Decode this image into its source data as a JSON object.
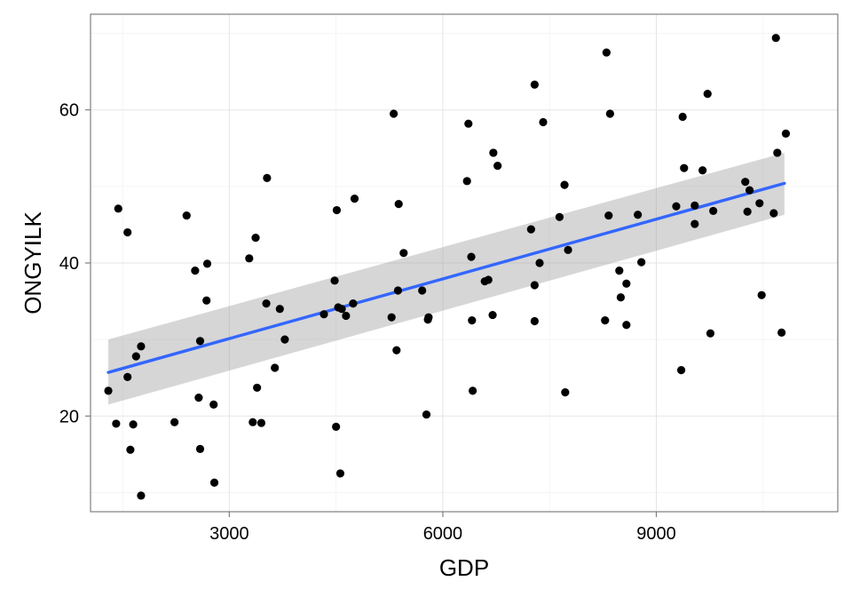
{
  "chart_data": {
    "type": "scatter",
    "title": "",
    "xlabel": "GDP",
    "ylabel": "ONGYILK",
    "xlim": [
      1050,
      11550
    ],
    "ylim": [
      7.5,
      72.5
    ],
    "x_ticks": [
      3000,
      6000,
      9000
    ],
    "y_ticks": [
      20,
      40,
      60
    ],
    "x_tick_labels": [
      "3000",
      "6000",
      "9000"
    ],
    "y_tick_labels": [
      "20",
      "40",
      "60"
    ],
    "grid": true,
    "point_color": "#000000",
    "trend_line": {
      "method": "linear",
      "color": "#3366FF",
      "x": [
        1300,
        10800
      ],
      "y": [
        25.7,
        50.4
      ],
      "ci_lower": [
        21.5,
        46.3
      ],
      "ci_upper": [
        30.0,
        54.4
      ],
      "ci_color": "#999999"
    },
    "points": [
      {
        "x": 1300,
        "y": 23.3
      },
      {
        "x": 1410,
        "y": 19.0
      },
      {
        "x": 1440,
        "y": 47.1
      },
      {
        "x": 1570,
        "y": 44.0
      },
      {
        "x": 1570,
        "y": 25.1
      },
      {
        "x": 1610,
        "y": 15.6
      },
      {
        "x": 1650,
        "y": 18.9
      },
      {
        "x": 1690,
        "y": 27.8
      },
      {
        "x": 1760,
        "y": 9.6
      },
      {
        "x": 1760,
        "y": 29.1
      },
      {
        "x": 2230,
        "y": 19.2
      },
      {
        "x": 2400,
        "y": 46.2
      },
      {
        "x": 2520,
        "y": 39.0
      },
      {
        "x": 2570,
        "y": 22.4
      },
      {
        "x": 2590,
        "y": 29.8
      },
      {
        "x": 2590,
        "y": 15.7
      },
      {
        "x": 2680,
        "y": 35.1
      },
      {
        "x": 2690,
        "y": 39.9
      },
      {
        "x": 2780,
        "y": 21.5
      },
      {
        "x": 2790,
        "y": 11.3
      },
      {
        "x": 3280,
        "y": 40.6
      },
      {
        "x": 3330,
        "y": 19.2
      },
      {
        "x": 3370,
        "y": 43.3
      },
      {
        "x": 3390,
        "y": 23.7
      },
      {
        "x": 3450,
        "y": 19.1
      },
      {
        "x": 3520,
        "y": 34.7
      },
      {
        "x": 3530,
        "y": 51.1
      },
      {
        "x": 3640,
        "y": 26.3
      },
      {
        "x": 3710,
        "y": 34.0
      },
      {
        "x": 3780,
        "y": 30.0
      },
      {
        "x": 4330,
        "y": 33.3
      },
      {
        "x": 4480,
        "y": 37.7
      },
      {
        "x": 4500,
        "y": 18.6
      },
      {
        "x": 4510,
        "y": 46.9
      },
      {
        "x": 4530,
        "y": 34.2
      },
      {
        "x": 4560,
        "y": 12.5
      },
      {
        "x": 4580,
        "y": 34.0
      },
      {
        "x": 4640,
        "y": 33.1
      },
      {
        "x": 4740,
        "y": 34.7
      },
      {
        "x": 4760,
        "y": 48.4
      },
      {
        "x": 5280,
        "y": 32.9
      },
      {
        "x": 5310,
        "y": 59.5
      },
      {
        "x": 5350,
        "y": 28.6
      },
      {
        "x": 5370,
        "y": 36.4
      },
      {
        "x": 5380,
        "y": 47.7
      },
      {
        "x": 5450,
        "y": 41.3
      },
      {
        "x": 5710,
        "y": 36.4
      },
      {
        "x": 5770,
        "y": 20.2
      },
      {
        "x": 5790,
        "y": 32.6
      },
      {
        "x": 5800,
        "y": 32.9
      },
      {
        "x": 6340,
        "y": 50.7
      },
      {
        "x": 6360,
        "y": 58.2
      },
      {
        "x": 6400,
        "y": 40.8
      },
      {
        "x": 6410,
        "y": 32.5
      },
      {
        "x": 6420,
        "y": 23.3
      },
      {
        "x": 6590,
        "y": 37.6
      },
      {
        "x": 6640,
        "y": 37.8
      },
      {
        "x": 6700,
        "y": 33.2
      },
      {
        "x": 6710,
        "y": 54.4
      },
      {
        "x": 6770,
        "y": 52.7
      },
      {
        "x": 7240,
        "y": 44.4
      },
      {
        "x": 7290,
        "y": 63.3
      },
      {
        "x": 7290,
        "y": 37.1
      },
      {
        "x": 7290,
        "y": 32.4
      },
      {
        "x": 7360,
        "y": 40.0
      },
      {
        "x": 7410,
        "y": 58.4
      },
      {
        "x": 7640,
        "y": 46.0
      },
      {
        "x": 7710,
        "y": 50.2
      },
      {
        "x": 7720,
        "y": 23.1
      },
      {
        "x": 7760,
        "y": 41.7
      },
      {
        "x": 8280,
        "y": 32.5
      },
      {
        "x": 8300,
        "y": 67.5
      },
      {
        "x": 8330,
        "y": 46.2
      },
      {
        "x": 8350,
        "y": 59.5
      },
      {
        "x": 8480,
        "y": 39.0
      },
      {
        "x": 8500,
        "y": 35.5
      },
      {
        "x": 8580,
        "y": 37.3
      },
      {
        "x": 8580,
        "y": 31.9
      },
      {
        "x": 8740,
        "y": 46.3
      },
      {
        "x": 8790,
        "y": 40.1
      },
      {
        "x": 9280,
        "y": 47.4
      },
      {
        "x": 9350,
        "y": 26.0
      },
      {
        "x": 9370,
        "y": 59.1
      },
      {
        "x": 9390,
        "y": 52.4
      },
      {
        "x": 9540,
        "y": 45.1
      },
      {
        "x": 9540,
        "y": 47.5
      },
      {
        "x": 9650,
        "y": 52.1
      },
      {
        "x": 9720,
        "y": 62.1
      },
      {
        "x": 9760,
        "y": 30.8
      },
      {
        "x": 9800,
        "y": 46.8
      },
      {
        "x": 10250,
        "y": 50.6
      },
      {
        "x": 10280,
        "y": 46.7
      },
      {
        "x": 10310,
        "y": 49.5
      },
      {
        "x": 10450,
        "y": 47.8
      },
      {
        "x": 10480,
        "y": 35.8
      },
      {
        "x": 10650,
        "y": 46.5
      },
      {
        "x": 10680,
        "y": 69.4
      },
      {
        "x": 10700,
        "y": 54.4
      },
      {
        "x": 10760,
        "y": 30.9
      },
      {
        "x": 10820,
        "y": 56.9
      }
    ]
  }
}
